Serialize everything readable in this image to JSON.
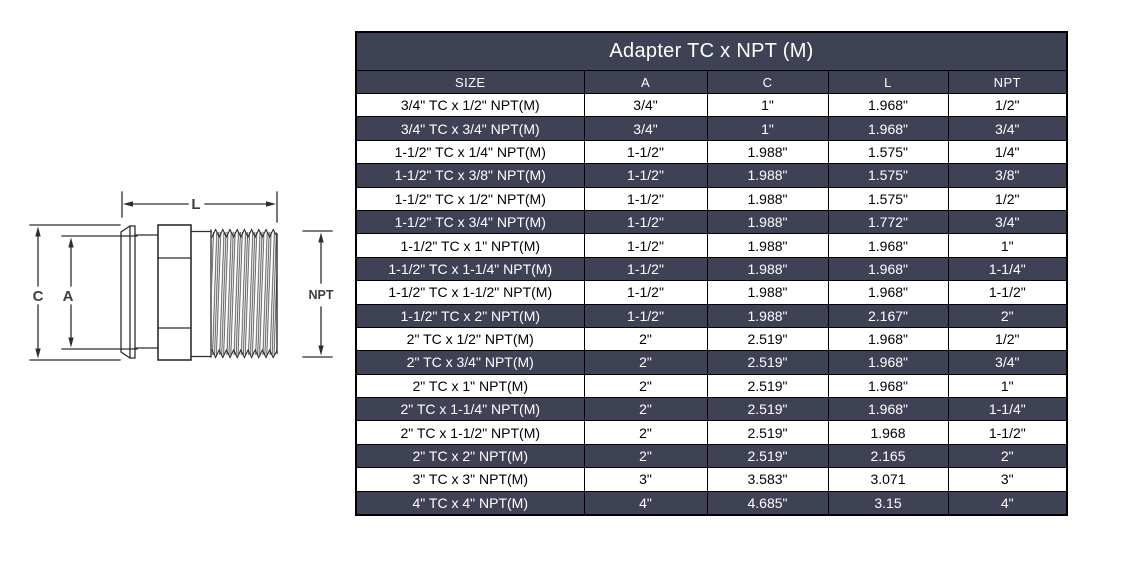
{
  "diagram": {
    "labels": {
      "length": "L",
      "clamp_od": "C",
      "tube_id": "A",
      "thread": "NPT"
    },
    "line_color": "#2e2e2e",
    "label_color": "#3d3d3d"
  },
  "table": {
    "title": "Adapter TC x NPT (M)",
    "columns": [
      "SIZE",
      "A",
      "C",
      "L",
      "NPT"
    ],
    "rows": [
      [
        "3/4\" TC x 1/2\" NPT(M)",
        "3/4\"",
        "1\"",
        "1.968\"",
        "1/2\""
      ],
      [
        "3/4\" TC x 3/4\" NPT(M)",
        "3/4\"",
        "1\"",
        "1.968\"",
        "3/4\""
      ],
      [
        "1-1/2\" TC x 1/4\" NPT(M)",
        "1-1/2\"",
        "1.988\"",
        "1.575\"",
        "1/4\""
      ],
      [
        "1-1/2\" TC x 3/8\" NPT(M)",
        "1-1/2\"",
        "1.988\"",
        "1.575\"",
        "3/8\""
      ],
      [
        "1-1/2\" TC x 1/2\" NPT(M)",
        "1-1/2\"",
        "1.988\"",
        "1.575\"",
        "1/2\""
      ],
      [
        "1-1/2\" TC x 3/4\" NPT(M)",
        "1-1/2\"",
        "1.988\"",
        "1.772\"",
        "3/4\""
      ],
      [
        "1-1/2\" TC x 1\" NPT(M)",
        "1-1/2\"",
        "1.988\"",
        "1.968\"",
        "1\""
      ],
      [
        "1-1/2\" TC x 1-1/4\" NPT(M)",
        "1-1/2\"",
        "1.988\"",
        "1.968\"",
        "1-1/4\""
      ],
      [
        "1-1/2\" TC x 1-1/2\" NPT(M)",
        "1-1/2\"",
        "1.988\"",
        "1.968\"",
        "1-1/2\""
      ],
      [
        "1-1/2\" TC x 2\" NPT(M)",
        "1-1/2\"",
        "1.988\"",
        "2.167\"",
        "2\""
      ],
      [
        "2\" TC x 1/2\" NPT(M)",
        "2\"",
        "2.519\"",
        "1.968\"",
        "1/2\""
      ],
      [
        "2\" TC x 3/4\" NPT(M)",
        "2\"",
        "2.519\"",
        "1.968\"",
        "3/4\""
      ],
      [
        "2\" TC x 1\" NPT(M)",
        "2\"",
        "2.519\"",
        "1.968\"",
        "1\""
      ],
      [
        "2\" TC x 1-1/4\" NPT(M)",
        "2\"",
        "2.519\"",
        "1.968\"",
        "1-1/4\""
      ],
      [
        "2\" TC x 1-1/2\" NPT(M)",
        "2\"",
        "2.519\"",
        "1.968",
        "1-1/2\""
      ],
      [
        "2\" TC x 2\" NPT(M)",
        "2\"",
        "2.519\"",
        "2.165",
        "2\""
      ],
      [
        "3\" TC x 3\" NPT(M)",
        "3\"",
        "3.583\"",
        "3.071",
        "3\""
      ],
      [
        "4\" TC x 4\" NPT(M)",
        "4\"",
        "4.685\"",
        "3.15",
        "4\""
      ]
    ],
    "colors": {
      "dark_row_bg": "#3f4254",
      "light_row_bg": "#ffffff",
      "border": "#000000",
      "dark_row_text": "#ffffff",
      "light_row_text": "#000000"
    }
  }
}
